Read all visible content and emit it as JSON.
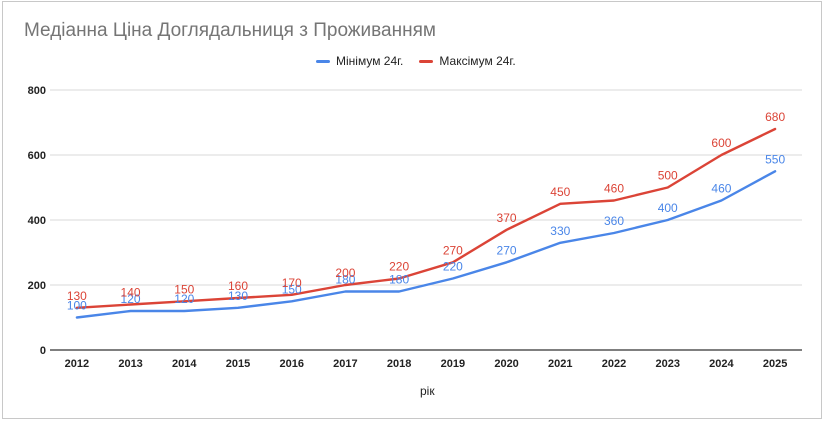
{
  "chart_data": {
    "type": "line",
    "title": "Медіанна Ціна Доглядальниця з Проживанням",
    "xlabel": "рік",
    "ylabel": "",
    "categories": [
      "2012",
      "2013",
      "2014",
      "2015",
      "2016",
      "2017",
      "2018",
      "2019",
      "2020",
      "2021",
      "2022",
      "2023",
      "2024",
      "2025"
    ],
    "ylim": [
      0,
      800
    ],
    "yticks": [
      0,
      200,
      400,
      600,
      800
    ],
    "grid": true,
    "legend_position": "top",
    "series": [
      {
        "name": "Мінімум 24г.",
        "color": "#4a86e8",
        "values": [
          100,
          120,
          120,
          130,
          150,
          180,
          180,
          220,
          270,
          330,
          360,
          400,
          460,
          550
        ],
        "labels": [
          "100",
          "120",
          "120",
          "130",
          "150",
          "180",
          "180",
          "220",
          "270",
          "330",
          "360",
          "400",
          "460",
          "550"
        ]
      },
      {
        "name": "Максімум 24г.",
        "color": "#db4437",
        "values": [
          130,
          140,
          150,
          160,
          170,
          200,
          220,
          270,
          370,
          450,
          460,
          500,
          600,
          680
        ],
        "labels": [
          "130",
          "140",
          "150",
          "160",
          "170",
          "200",
          "220",
          "270",
          "370",
          "450",
          "460",
          "500",
          "600",
          "680"
        ]
      }
    ]
  }
}
